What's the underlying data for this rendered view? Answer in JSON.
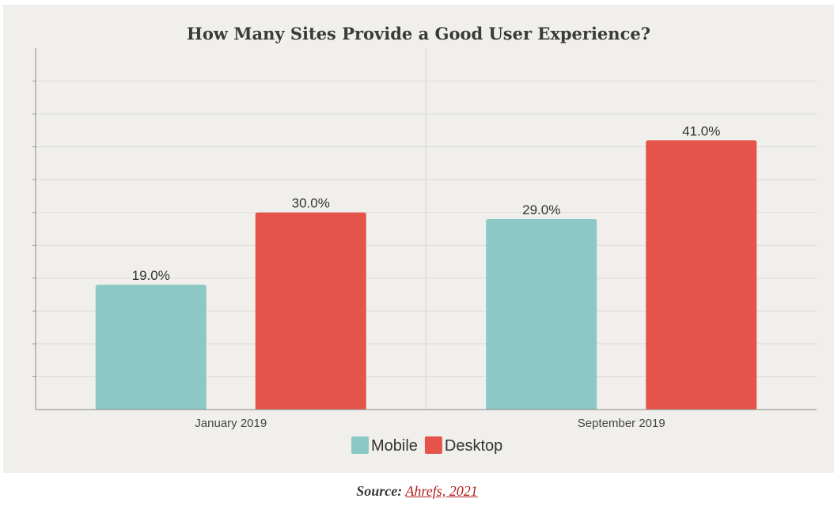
{
  "chart_data": {
    "type": "bar",
    "title": "How Many Sites Provide a Good User Experience?",
    "categories": [
      "January 2019",
      "September 2019"
    ],
    "series": [
      {
        "name": "Mobile",
        "color": "#8cc8c6",
        "values": [
          19.0,
          29.0
        ],
        "labels": [
          "19.0%",
          "29.0%"
        ]
      },
      {
        "name": "Desktop",
        "color": "#e5544a",
        "values": [
          30.0,
          41.0
        ],
        "labels": [
          "30.0%",
          "41.0%"
        ]
      }
    ],
    "ylim": [
      0,
      55
    ],
    "grid": true,
    "legend": "bottom-center"
  },
  "source": {
    "label": "Source:",
    "link_text": "Ahrefs, 2021"
  }
}
